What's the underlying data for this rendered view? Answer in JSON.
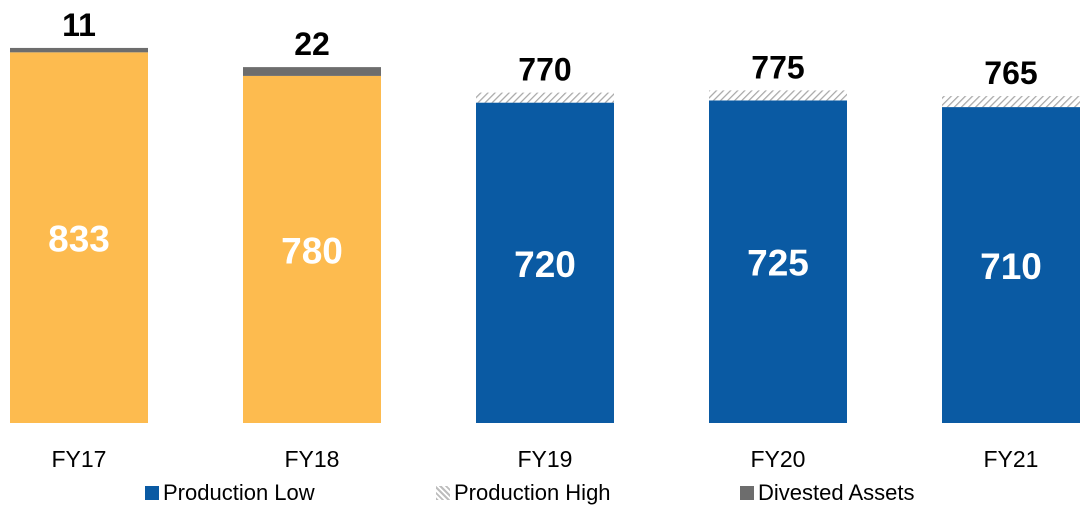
{
  "chart_data": {
    "type": "bar",
    "stacked": true,
    "categories": [
      "FY17",
      "FY18",
      "FY19",
      "FY20",
      "FY21"
    ],
    "series": [
      {
        "name": "Production Low",
        "values": [
          833,
          780,
          720,
          725,
          710
        ],
        "color": "#0a5aa3"
      },
      {
        "name": "Production High",
        "values": [
          0,
          0,
          50,
          50,
          55
        ],
        "color": "#bdbdbd",
        "pattern": "hatch"
      },
      {
        "name": "Divested Assets",
        "values": [
          11,
          22,
          0,
          0,
          0
        ],
        "color": "#6d6d6d"
      }
    ],
    "historical_bar_color": "#fdbb4f",
    "inside_labels": [
      "833",
      "780",
      "720",
      "725",
      "710"
    ],
    "top_labels": [
      "11",
      "22",
      "770",
      "775",
      "765"
    ],
    "ylim": [
      0,
      845
    ],
    "grid": false,
    "legend_position": "bottom"
  }
}
